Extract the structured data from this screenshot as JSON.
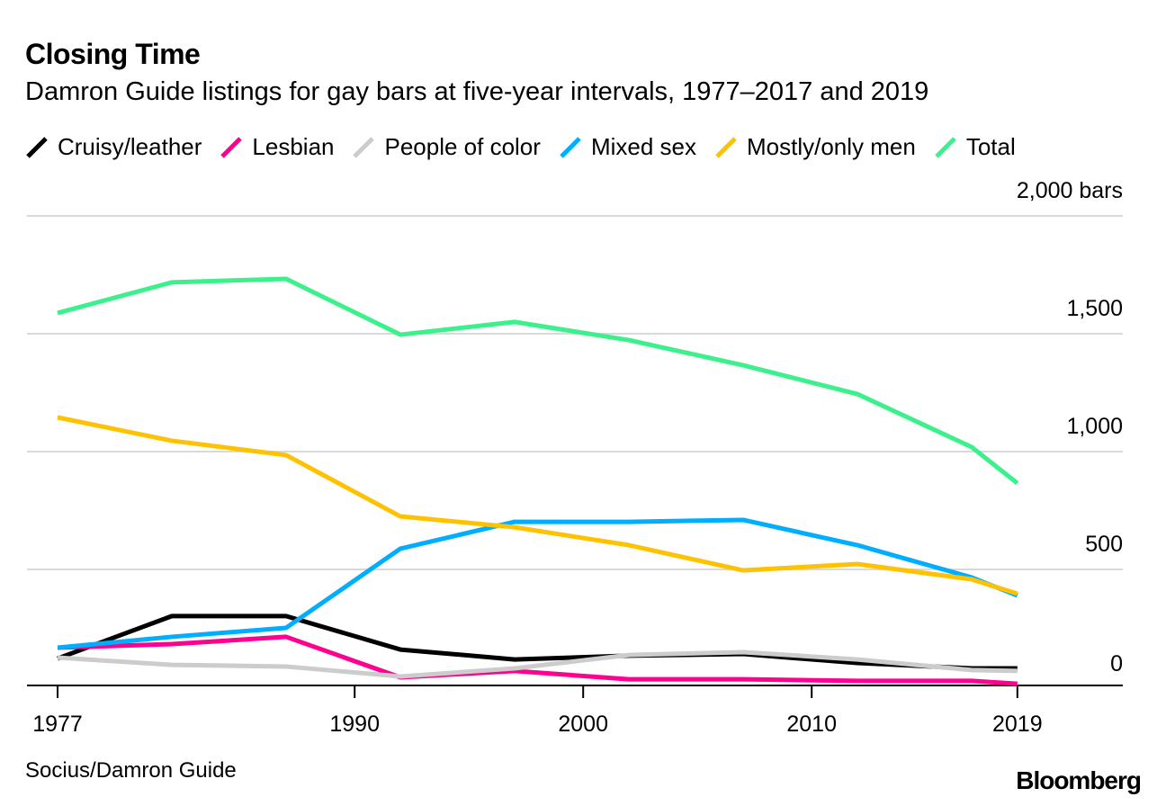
{
  "chart_data": {
    "type": "line",
    "title": "Closing Time",
    "subtitle": "Damron Guide listings for gay bars at five-year intervals, 1977–2017 and 2019",
    "x": [
      1977,
      1982,
      1987,
      1992,
      1997,
      2002,
      2007,
      2012,
      2017,
      2019
    ],
    "xticks": [
      "1977",
      "1990",
      "2000",
      "2010",
      "2019"
    ],
    "xtick_values": [
      1977,
      1990,
      2000,
      2010,
      2019
    ],
    "yticks": [
      "0",
      "500",
      "1,000",
      "1,500",
      "2,000 bars"
    ],
    "ytick_values": [
      0,
      500,
      1000,
      1500,
      2000
    ],
    "ylim": [
      0,
      2000
    ],
    "grid": true,
    "legend": "top",
    "series": [
      {
        "name": "Cruisy/leather",
        "color": "#000000",
        "values": [
          122,
          302,
          302,
          160,
          118,
          134,
          141,
          103,
          80,
          80
        ]
      },
      {
        "name": "Lesbian",
        "color": "#ff0090",
        "values": [
          168,
          183,
          214,
          42,
          69,
          34,
          34,
          27,
          27,
          15
        ]
      },
      {
        "name": "People of color",
        "color": "#cccccc",
        "values": [
          126,
          95,
          88,
          46,
          80,
          137,
          149,
          118,
          73,
          69
        ]
      },
      {
        "name": "Mixed sex",
        "color": "#00aeff",
        "values": [
          168,
          214,
          252,
          588,
          702,
          702,
          710,
          603,
          466,
          389
        ]
      },
      {
        "name": "Mostly/only men",
        "color": "#ffc200",
        "values": [
          1145,
          1046,
          985,
          725,
          679,
          603,
          496,
          523,
          458,
          397
        ]
      },
      {
        "name": "Total",
        "color": "#3cf08c",
        "values": [
          1588,
          1718,
          1733,
          1496,
          1550,
          1473,
          1366,
          1244,
          1019,
          866
        ]
      }
    ],
    "source": "Socius/Damron Guide",
    "logo": "Bloomberg"
  }
}
